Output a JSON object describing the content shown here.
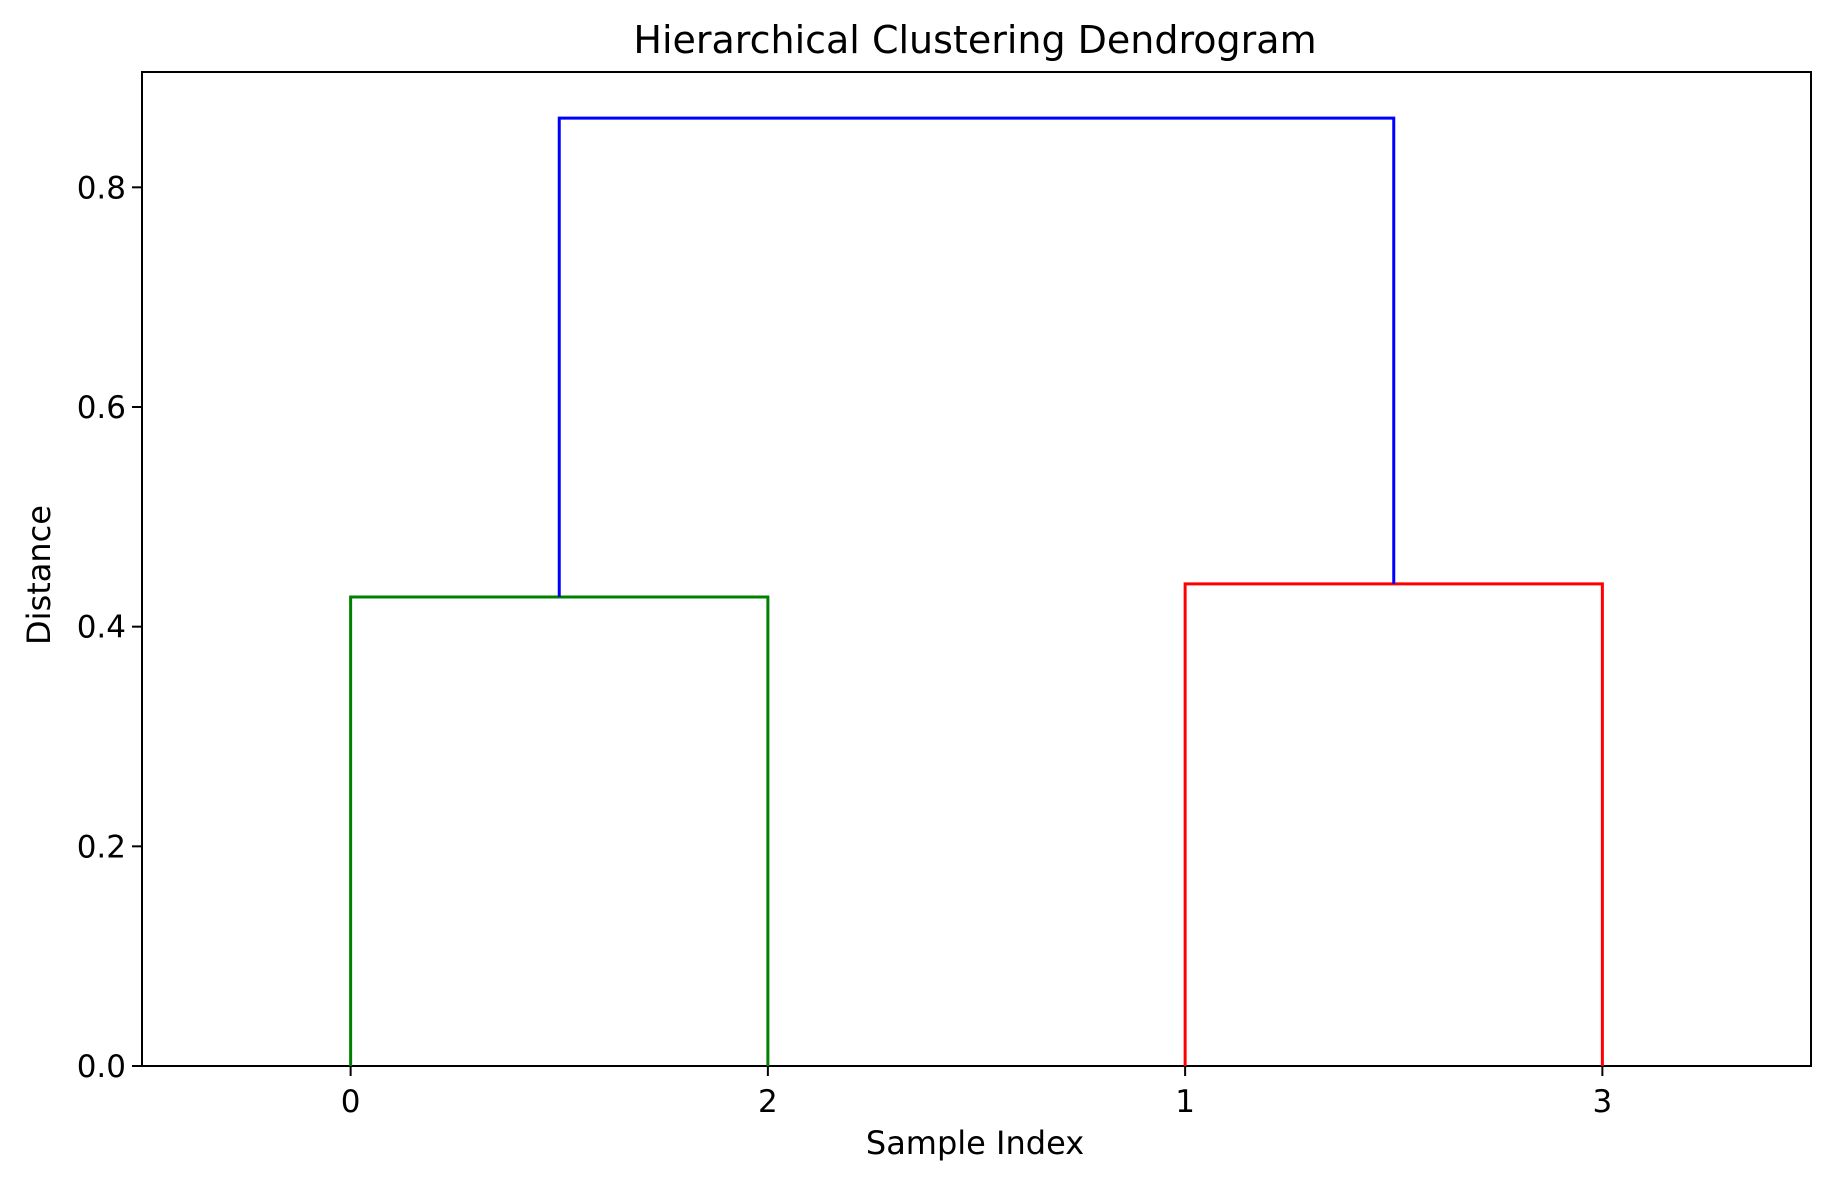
{
  "chart_data": {
    "type": "dendrogram",
    "title": "Hierarchical Clustering Dendrogram",
    "xlabel": "Sample Index",
    "ylabel": "Distance",
    "ylim": [
      0,
      0.905
    ],
    "leaf_order": [
      "0",
      "2",
      "1",
      "3"
    ],
    "y_ticks": [
      "0.0",
      "0.2",
      "0.4",
      "0.6",
      "0.8"
    ],
    "y_tick_values": [
      0.0,
      0.2,
      0.4,
      0.6,
      0.8
    ],
    "grid": false,
    "links": [
      {
        "name": "cluster-0-2",
        "left": "0",
        "right": "2",
        "distance": 0.427,
        "color": "#008000"
      },
      {
        "name": "cluster-1-3",
        "left": "1",
        "right": "3",
        "distance": 0.439,
        "color": "#ff0000"
      },
      {
        "name": "cluster-root",
        "left": "cluster-0-2",
        "right": "cluster-1-3",
        "distance": 0.863,
        "color": "#0000ff"
      }
    ]
  }
}
